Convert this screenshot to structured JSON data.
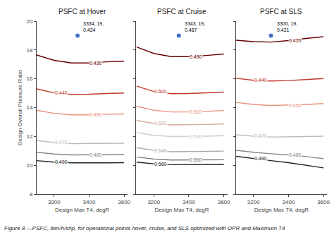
{
  "caption": "Figure 8 —PSFC, lbm/h/shp, for operational points hover, cruise, and SLS optimized with OPR and Maximum T4",
  "chart_data": [
    {
      "type": "line",
      "title": "PSFC at Hover",
      "xlabel": "Design Max T4, degR",
      "ylabel": "Design Overall Pressure Ratio",
      "xlim": [
        3100,
        3620
      ],
      "xticks": [
        3200,
        3400,
        3600
      ],
      "ylim": [
        8,
        20
      ],
      "yticks": [
        8,
        10,
        12,
        14,
        16,
        18,
        20
      ],
      "grid": false,
      "legend": "none",
      "series": [
        {
          "name": "0.430",
          "color": "#6B0000",
          "x": [
            3100,
            3200,
            3300,
            3400,
            3500,
            3600
          ],
          "values": [
            17.65,
            17.28,
            17.1,
            17.1,
            17.18,
            17.22
          ]
        },
        {
          "name": "0.440",
          "color": "#C0392B",
          "x": [
            3100,
            3200,
            3300,
            3400,
            3500,
            3600
          ],
          "values": [
            15.3,
            15.02,
            14.92,
            14.93,
            14.98,
            15.02
          ]
        },
        {
          "name": "0.450",
          "color": "#E8907A",
          "x": [
            3100,
            3200,
            3300,
            3400,
            3500,
            3600
          ],
          "values": [
            13.82,
            13.6,
            13.5,
            13.5,
            13.54,
            13.56
          ]
        },
        {
          "name": "0.470",
          "color": "#BBBBBB",
          "x": [
            3100,
            3200,
            3300,
            3400,
            3500,
            3600
          ],
          "values": [
            11.72,
            11.58,
            11.5,
            11.5,
            11.52,
            11.53
          ]
        },
        {
          "name": "0.480",
          "color": "#888888",
          "x": [
            3100,
            3200,
            3300,
            3400,
            3500,
            3600
          ],
          "values": [
            10.9,
            10.78,
            10.72,
            10.72,
            10.73,
            10.74
          ]
        },
        {
          "name": "0.490",
          "color": "#222222",
          "x": [
            3100,
            3200,
            3300,
            3400,
            3500,
            3600
          ],
          "values": [
            10.32,
            10.22,
            10.17,
            10.16,
            10.17,
            10.18
          ]
        }
      ],
      "annotations": [
        {
          "x": 3334,
          "y": 19,
          "text": "3334, 19,\n0.424",
          "marker": "circle",
          "color": "#4472C4"
        }
      ]
    },
    {
      "type": "line",
      "title": "PSFC at Cruise",
      "xlabel": "Design Max T4, degR",
      "xlim": [
        3100,
        3620
      ],
      "xticks": [
        3200,
        3400,
        3600
      ],
      "ylim": [
        8,
        20
      ],
      "yticks": [
        8,
        10,
        12,
        14,
        16,
        18,
        20
      ],
      "grid": false,
      "legend": "none",
      "tick_labels": "x",
      "series": [
        {
          "name": "0.490",
          "color": "#6B0000",
          "x": [
            3100,
            3200,
            3300,
            3400,
            3500,
            3600
          ],
          "values": [
            18.22,
            17.76,
            17.54,
            17.54,
            17.62,
            17.72
          ]
        },
        {
          "name": "0.500",
          "color": "#C0392B",
          "x": [
            3100,
            3200,
            3300,
            3400,
            3500,
            3600
          ],
          "values": [
            15.5,
            15.12,
            14.97,
            14.98,
            15.03,
            15.08
          ]
        },
        {
          "name": "0.510",
          "color": "#E8907A",
          "x": [
            3100,
            3200,
            3300,
            3400,
            3500,
            3600
          ],
          "values": [
            14.1,
            13.82,
            13.7,
            13.7,
            13.75,
            13.8
          ]
        },
        {
          "name": "0.520",
          "color": "#D4A8A0",
          "x": [
            3100,
            3200,
            3300,
            3400,
            3500,
            3600
          ],
          "values": [
            13.12,
            12.9,
            12.8,
            12.8,
            12.83,
            12.87
          ]
        },
        {
          "name": "0.530",
          "color": "#CCCCCC",
          "x": [
            3100,
            3200,
            3300,
            3400,
            3500,
            3600
          ],
          "values": [
            12.28,
            12.08,
            12.0,
            12.0,
            12.02,
            12.05
          ]
        },
        {
          "name": "0.540",
          "color": "#AAAAAA",
          "x": [
            3100,
            3200,
            3300,
            3400,
            3500,
            3600
          ],
          "values": [
            11.22,
            11.03,
            10.94,
            10.94,
            10.96,
            10.98
          ]
        },
        {
          "name": "0.550",
          "color": "#777777",
          "x": [
            3100,
            3200,
            3300,
            3400,
            3500,
            3600
          ],
          "values": [
            10.58,
            10.43,
            10.36,
            10.36,
            10.37,
            10.38
          ]
        },
        {
          "name": "0.560",
          "color": "#222222",
          "x": [
            3100,
            3200,
            3300,
            3400,
            3500,
            3600
          ],
          "values": [
            10.22,
            10.1,
            10.04,
            10.04,
            10.05,
            10.06
          ]
        }
      ],
      "annotations": [
        {
          "x": 3343,
          "y": 19,
          "text": "3343, 19,\n0.487",
          "marker": "circle",
          "color": "#4472C4"
        }
      ]
    },
    {
      "type": "line",
      "title": "PSFC at SLS",
      "xlabel": "Design Max T4, degR",
      "xlim": [
        3100,
        3620
      ],
      "xticks": [
        3200,
        3400,
        3600
      ],
      "ylim": [
        8,
        20
      ],
      "yticks": [
        8,
        10,
        12,
        14,
        16,
        18,
        20
      ],
      "grid": false,
      "legend": "none",
      "tick_labels": "x",
      "series": [
        {
          "name": "0.420",
          "color": "#6B0000",
          "x": [
            3100,
            3200,
            3300,
            3400,
            3500,
            3600
          ],
          "values": [
            18.68,
            18.58,
            18.55,
            18.65,
            18.8,
            18.92
          ]
        },
        {
          "name": "0.440",
          "color": "#C0392B",
          "x": [
            3100,
            3200,
            3300,
            3400,
            3500,
            3600
          ],
          "values": [
            16.04,
            15.9,
            15.85,
            15.88,
            15.95,
            16.02
          ]
        },
        {
          "name": "0.450",
          "color": "#E8907A",
          "x": [
            3100,
            3200,
            3300,
            3400,
            3500,
            3600
          ],
          "values": [
            14.36,
            14.22,
            14.15,
            14.17,
            14.22,
            14.28
          ]
        },
        {
          "name": "0.470",
          "color": "#BBBBBB",
          "x": [
            3100,
            3200,
            3300,
            3400,
            3500,
            3600
          ],
          "values": [
            12.12,
            12.02,
            11.96,
            11.96,
            11.99,
            12.02
          ]
        },
        {
          "name": "0.480",
          "color": "#888888",
          "x": [
            3100,
            3200,
            3300,
            3400,
            3500,
            3600
          ],
          "values": [
            11.04,
            10.9,
            10.8,
            10.72,
            10.6,
            10.46
          ]
        },
        {
          "name": "0.490",
          "color": "#222222",
          "x": [
            3100,
            3200,
            3300,
            3400,
            3500,
            3600
          ],
          "values": [
            10.62,
            10.46,
            10.32,
            10.18,
            10.0,
            9.82
          ]
        }
      ],
      "annotations": [
        {
          "x": 3300,
          "y": 19,
          "text": "3300, 19,\n0.421",
          "marker": "circle",
          "color": "#4472C4"
        }
      ]
    }
  ]
}
